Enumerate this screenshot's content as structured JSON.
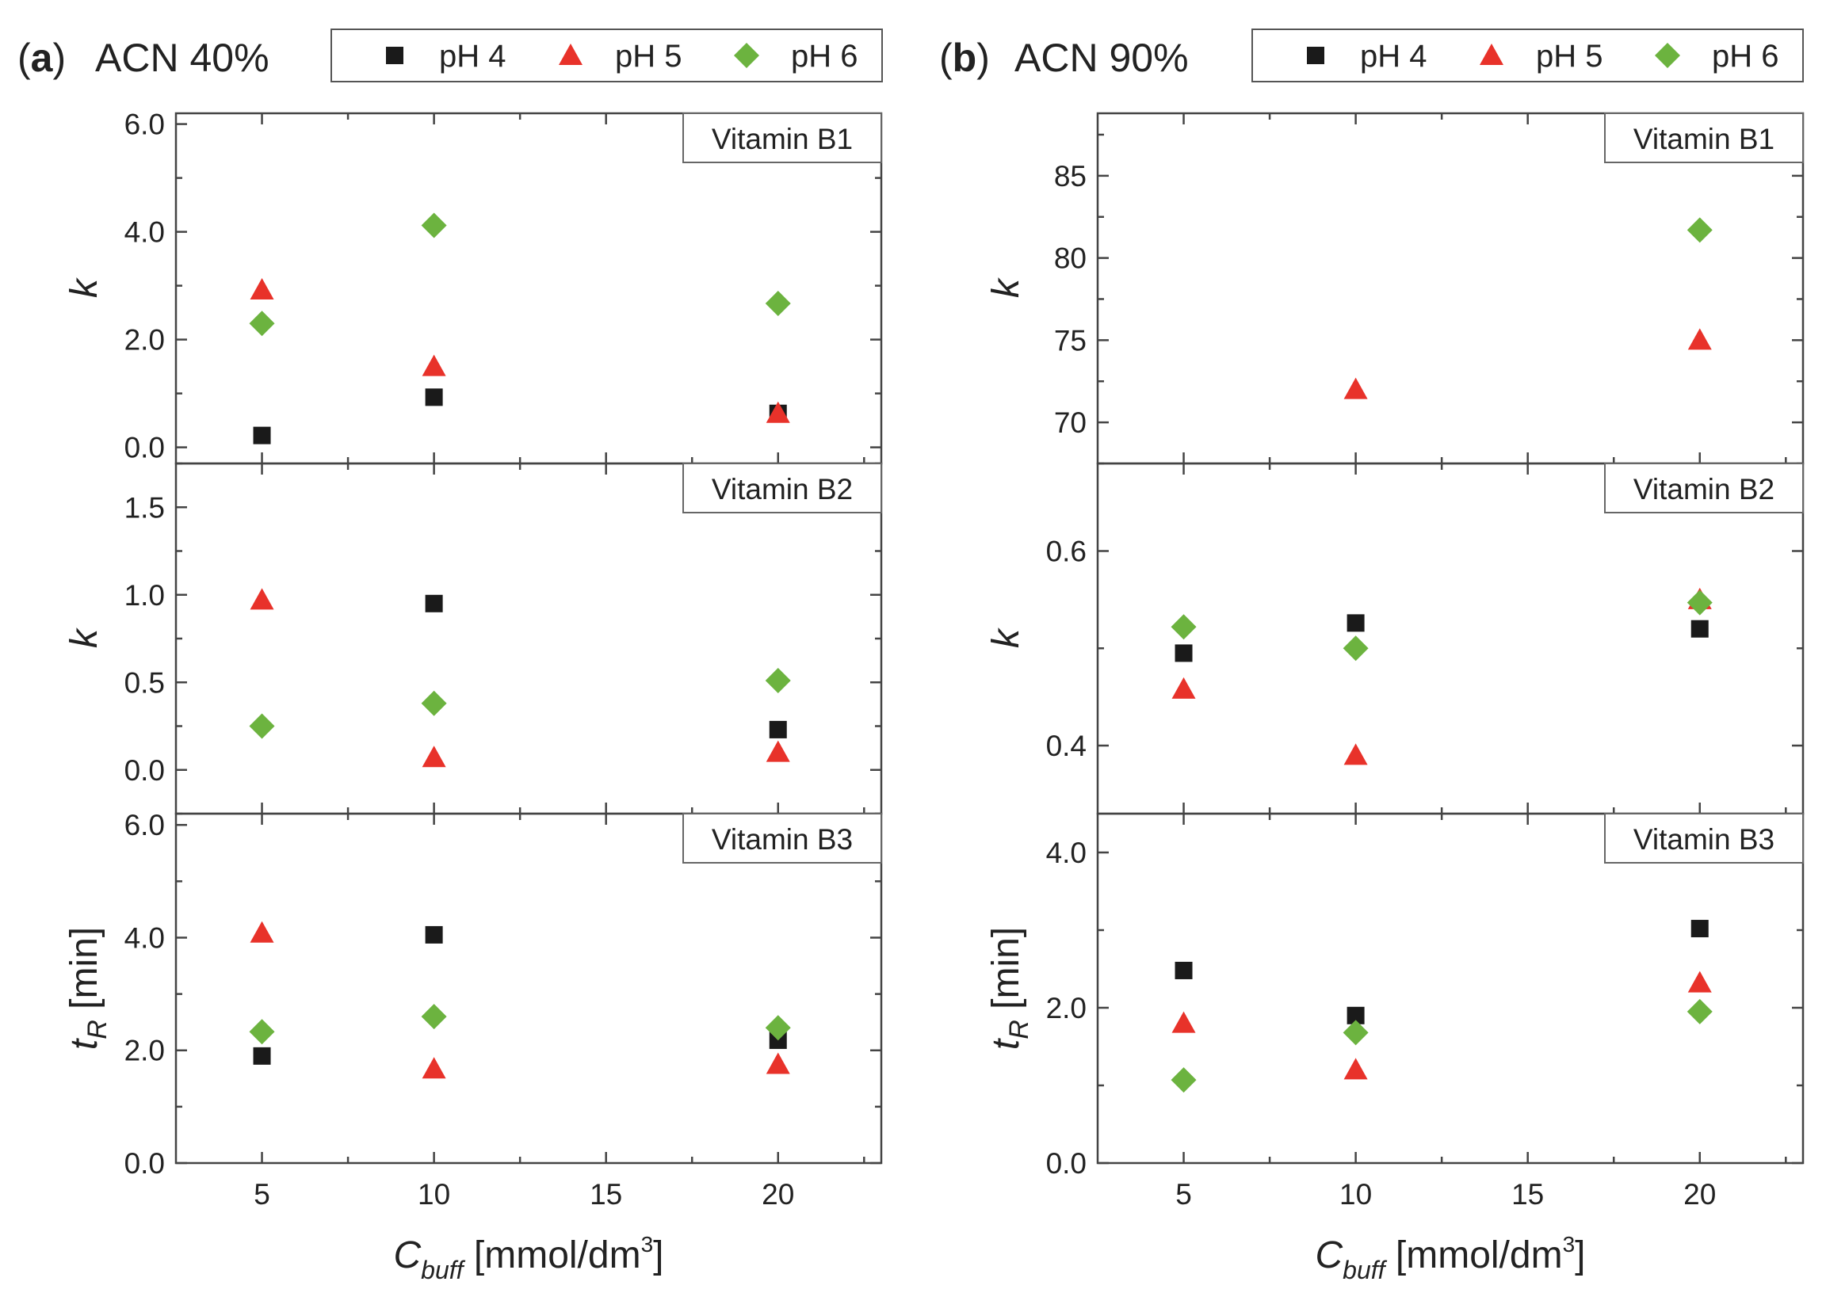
{
  "colors": {
    "pH4": "#1a1a1a",
    "pH5": "#e8322a",
    "pH6": "#6cb33f",
    "axis": "#444444",
    "frame": "#888888"
  },
  "legend": [
    {
      "key": "pH4",
      "label": "pH 4",
      "marker": "square"
    },
    {
      "key": "pH5",
      "label": "pH 5",
      "marker": "triangle"
    },
    {
      "key": "pH6",
      "label": "pH 6",
      "marker": "diamond"
    }
  ],
  "panels": [
    {
      "letter": "a",
      "title": "ACN 40%",
      "xlabel_main": "C",
      "xlabel_sub": "buff",
      "xlabel_unit": "[mmol/dm",
      "xlabel_sup": "3",
      "xlabel_end": "]"
    },
    {
      "letter": "b",
      "title": "ACN 90%",
      "xlabel_main": "C",
      "xlabel_sub": "buff",
      "xlabel_unit": "[mmol/dm",
      "xlabel_sup": "3",
      "xlabel_end": "]"
    }
  ],
  "chart_data": [
    {
      "type": "scatter",
      "panel": "a",
      "title": "Vitamin B1",
      "ylabel": "k",
      "ylabel_sub": "",
      "ylabel_unit": "",
      "xlim": [
        2.5,
        23
      ],
      "ylim": [
        -0.3,
        6.2
      ],
      "xticks": [
        5,
        10,
        15,
        20
      ],
      "xtick_labels": [],
      "yticks": [
        0,
        2,
        4,
        6
      ],
      "ytick_labels": [
        "0.0",
        "2.0",
        "4.0",
        "6.0"
      ],
      "yminor": true,
      "x": [
        5,
        10,
        20
      ],
      "series": [
        {
          "name": "pH 4",
          "key": "pH4",
          "values": [
            0.22,
            0.93,
            0.63
          ]
        },
        {
          "name": "pH 5",
          "key": "pH5",
          "values": [
            2.92,
            1.5,
            0.63
          ]
        },
        {
          "name": "pH 6",
          "key": "pH6",
          "values": [
            2.3,
            4.12,
            2.67
          ]
        }
      ]
    },
    {
      "type": "scatter",
      "panel": "a",
      "title": "Vitamin B2",
      "ylabel": "k",
      "ylabel_sub": "",
      "ylabel_unit": "",
      "xlim": [
        2.5,
        23
      ],
      "ylim": [
        -0.25,
        1.75
      ],
      "xticks": [
        5,
        10,
        15,
        20
      ],
      "xtick_labels": [],
      "yticks": [
        0,
        0.5,
        1.0,
        1.5
      ],
      "ytick_labels": [
        "0.0",
        "0.5",
        "1.0",
        "1.5"
      ],
      "yminor": true,
      "x": [
        5,
        10,
        20
      ],
      "series": [
        {
          "name": "pH 4",
          "key": "pH4",
          "values": [
            null,
            0.95,
            0.23
          ]
        },
        {
          "name": "pH 5",
          "key": "pH5",
          "values": [
            0.97,
            0.07,
            0.1
          ]
        },
        {
          "name": "pH 6",
          "key": "pH6",
          "values": [
            0.25,
            0.38,
            0.51
          ]
        }
      ]
    },
    {
      "type": "scatter",
      "panel": "a",
      "title": "Vitamin B3",
      "ylabel": "t",
      "ylabel_sub": "R",
      "ylabel_unit": "[min]",
      "xlim": [
        2.5,
        23
      ],
      "ylim": [
        0,
        6.2
      ],
      "xticks": [
        5,
        10,
        15,
        20
      ],
      "xtick_labels": [
        "5",
        "10",
        "15",
        "20"
      ],
      "yticks": [
        0,
        2,
        4,
        6
      ],
      "ytick_labels": [
        "0.0",
        "2.0",
        "4.0",
        "6.0"
      ],
      "yminor": true,
      "x": [
        5,
        10,
        20
      ],
      "series": [
        {
          "name": "pH 4",
          "key": "pH4",
          "values": [
            1.9,
            4.05,
            2.18
          ]
        },
        {
          "name": "pH 5",
          "key": "pH5",
          "values": [
            4.08,
            1.67,
            1.75
          ]
        },
        {
          "name": "pH 6",
          "key": "pH6",
          "values": [
            2.33,
            2.6,
            2.4
          ]
        }
      ]
    },
    {
      "type": "scatter",
      "panel": "b",
      "title": "Vitamin B1",
      "ylabel": "k",
      "ylabel_sub": "",
      "ylabel_unit": "",
      "xlim": [
        2.5,
        23
      ],
      "ylim": [
        67.5,
        88.8
      ],
      "xticks": [
        5,
        10,
        15,
        20
      ],
      "xtick_labels": [],
      "yticks": [
        70,
        75,
        80,
        85
      ],
      "ytick_labels": [
        "70",
        "75",
        "80",
        "85"
      ],
      "yminor": true,
      "x": [
        5,
        10,
        20
      ],
      "series": [
        {
          "name": "pH 4",
          "key": "pH4",
          "values": [
            null,
            null,
            null
          ]
        },
        {
          "name": "pH 5",
          "key": "pH5",
          "values": [
            null,
            72.0,
            75.0
          ]
        },
        {
          "name": "pH 6",
          "key": "pH6",
          "values": [
            null,
            null,
            81.7
          ]
        }
      ]
    },
    {
      "type": "scatter",
      "panel": "b",
      "title": "Vitamin B2",
      "ylabel": "k",
      "ylabel_sub": "",
      "ylabel_unit": "",
      "xlim": [
        2.5,
        23
      ],
      "ylim": [
        0.33,
        0.69
      ],
      "xticks": [
        5,
        10,
        15,
        20
      ],
      "xtick_labels": [],
      "yticks": [
        0.4,
        0.6
      ],
      "ytick_labels": [
        "0.4",
        "0.6"
      ],
      "yminor": true,
      "x": [
        5,
        10,
        20
      ],
      "series": [
        {
          "name": "pH 4",
          "key": "pH4",
          "values": [
            0.495,
            0.526,
            0.52
          ]
        },
        {
          "name": "pH 5",
          "key": "pH5",
          "values": [
            0.458,
            0.39,
            0.55
          ]
        },
        {
          "name": "pH 6",
          "key": "pH6",
          "values": [
            0.522,
            0.5,
            0.547
          ]
        }
      ]
    },
    {
      "type": "scatter",
      "panel": "b",
      "title": "Vitamin B3",
      "ylabel": "t",
      "ylabel_sub": "R",
      "ylabel_unit": "[min]",
      "xlim": [
        2.5,
        23
      ],
      "ylim": [
        0,
        4.5
      ],
      "xticks": [
        5,
        10,
        15,
        20
      ],
      "xtick_labels": [
        "5",
        "10",
        "15",
        "20"
      ],
      "yticks": [
        0,
        2,
        4
      ],
      "ytick_labels": [
        "0.0",
        "2.0",
        "4.0"
      ],
      "yminor": true,
      "x": [
        5,
        10,
        20
      ],
      "series": [
        {
          "name": "pH 4",
          "key": "pH4",
          "values": [
            2.48,
            1.9,
            3.02
          ]
        },
        {
          "name": "pH 5",
          "key": "pH5",
          "values": [
            1.8,
            1.2,
            2.32
          ]
        },
        {
          "name": "pH 6",
          "key": "pH6",
          "values": [
            1.07,
            1.68,
            1.95
          ]
        }
      ]
    }
  ]
}
